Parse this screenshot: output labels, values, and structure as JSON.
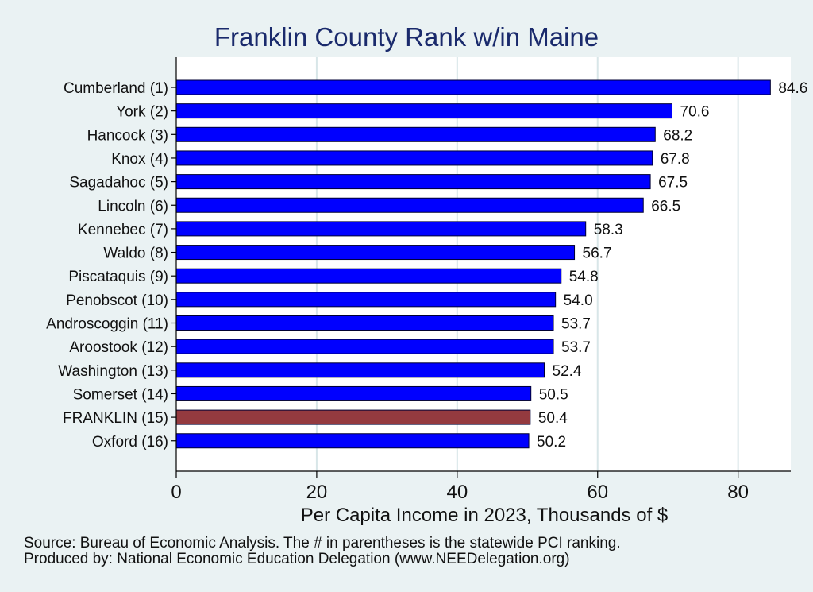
{
  "chart_data": {
    "type": "bar",
    "orientation": "horizontal",
    "title": "Franklin County Rank w/in Maine",
    "xlabel": "Per Capita Income in 2023, Thousands of $",
    "ylabel": "",
    "xlim": [
      0,
      87.5
    ],
    "xticks": [
      0,
      20,
      40,
      60,
      80
    ],
    "grid": "vertical",
    "categories": [
      "Cumberland  (1)",
      "York  (2)",
      "Hancock  (3)",
      "Knox  (4)",
      "Sagadahoc  (5)",
      "Lincoln  (6)",
      "Kennebec  (7)",
      "Waldo  (8)",
      "Piscataquis  (9)",
      "Penobscot (10)",
      "Androscoggin (11)",
      "Aroostook (12)",
      "Washington (13)",
      "Somerset (14)",
      "FRANKLIN (15)",
      "Oxford (16)"
    ],
    "values": [
      84.6,
      70.6,
      68.2,
      67.8,
      67.5,
      66.5,
      58.3,
      56.7,
      54.8,
      54.0,
      53.7,
      53.7,
      52.4,
      50.5,
      50.4,
      50.2
    ],
    "value_labels": [
      "84.6",
      "70.6",
      "68.2",
      "67.8",
      "67.5",
      "66.5",
      "58.3",
      "56.7",
      "54.8",
      "54.0",
      "53.7",
      "53.7",
      "52.4",
      "50.5",
      "50.4",
      "50.2"
    ],
    "highlight_index": 14,
    "colors": {
      "bar": "#0000ff",
      "highlight": "#943a3f",
      "bar_edge": "#000033",
      "grid": "#d8e6e8",
      "plot_bg": "#ffffff",
      "page_bg": "#eaf2f3",
      "title": "#1a2a6c"
    }
  },
  "notes": {
    "line1": "Source: Bureau of Economic Analysis. The # in parentheses is the statewide PCI ranking.",
    "line2": "Produced by: National Economic Education Delegation (www.NEEDelegation.org)"
  }
}
